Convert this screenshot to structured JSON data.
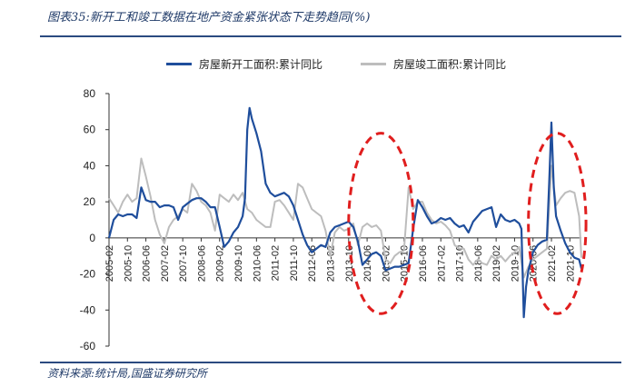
{
  "figure": {
    "title": "图表35:新开工和竣工数据在地产资金紧张状态下走势趋同(%)",
    "source": "资料来源:统计局,国盛证券研究所"
  },
  "chart_data": {
    "type": "line",
    "title": "",
    "xlabel": "",
    "ylabel": "",
    "ylim": [
      -60,
      80
    ],
    "yticks": [
      80,
      60,
      40,
      20,
      0,
      -20,
      -40,
      -60
    ],
    "xlim": [
      "2005-02",
      "2022-03"
    ],
    "xticks": [
      "2005-02",
      "2005-10",
      "2006-06",
      "2007-02",
      "2007-10",
      "2008-06",
      "2009-02",
      "2009-10",
      "2010-06",
      "2011-02",
      "2011-10",
      "2012-06",
      "2013-02",
      "2013-10",
      "2014-06",
      "2015-02",
      "2015-10",
      "2016-06",
      "2017-02",
      "2017-10",
      "2018-06",
      "2019-02",
      "2019-10",
      "2020-06",
      "2021-02",
      "2021-10"
    ],
    "legend_position": "top",
    "grid": false,
    "series": [
      {
        "name": "房屋新开工面积:累计同比",
        "color": "#1f4e9c",
        "points": [
          [
            "2005-02",
            0
          ],
          [
            "2005-04",
            10
          ],
          [
            "2005-06",
            13
          ],
          [
            "2005-08",
            12
          ],
          [
            "2005-10",
            13
          ],
          [
            "2005-12",
            13
          ],
          [
            "2006-02",
            11
          ],
          [
            "2006-04",
            28
          ],
          [
            "2006-06",
            21
          ],
          [
            "2006-08",
            20
          ],
          [
            "2006-10",
            20
          ],
          [
            "2006-12",
            17
          ],
          [
            "2007-02",
            18
          ],
          [
            "2007-04",
            18
          ],
          [
            "2007-06",
            17
          ],
          [
            "2007-08",
            10
          ],
          [
            "2007-10",
            17
          ],
          [
            "2007-12",
            19
          ],
          [
            "2008-02",
            21
          ],
          [
            "2008-04",
            22
          ],
          [
            "2008-06",
            22
          ],
          [
            "2008-08",
            20
          ],
          [
            "2008-10",
            17
          ],
          [
            "2008-12",
            17
          ],
          [
            "2009-02",
            6
          ],
          [
            "2009-04",
            -5
          ],
          [
            "2009-06",
            -2
          ],
          [
            "2009-08",
            3
          ],
          [
            "2009-10",
            6
          ],
          [
            "2009-12",
            12
          ],
          [
            "2010-01",
            22
          ],
          [
            "2010-02",
            60
          ],
          [
            "2010-03",
            72
          ],
          [
            "2010-04",
            66
          ],
          [
            "2010-06",
            58
          ],
          [
            "2010-08",
            48
          ],
          [
            "2010-10",
            30
          ],
          [
            "2010-12",
            25
          ],
          [
            "2011-02",
            23
          ],
          [
            "2011-04",
            24
          ],
          [
            "2011-06",
            25
          ],
          [
            "2011-08",
            23
          ],
          [
            "2011-10",
            18
          ],
          [
            "2011-12",
            10
          ],
          [
            "2012-02",
            2
          ],
          [
            "2012-04",
            -4
          ],
          [
            "2012-06",
            -8
          ],
          [
            "2012-08",
            -6
          ],
          [
            "2012-10",
            -4
          ],
          [
            "2012-12",
            -5
          ],
          [
            "2013-02",
            3
          ],
          [
            "2013-04",
            6
          ],
          [
            "2013-06",
            7
          ],
          [
            "2013-08",
            8
          ],
          [
            "2013-10",
            9
          ],
          [
            "2013-12",
            6
          ],
          [
            "2014-02",
            -2
          ],
          [
            "2014-04",
            -15
          ],
          [
            "2014-06",
            -12
          ],
          [
            "2014-08",
            -9
          ],
          [
            "2014-10",
            -8
          ],
          [
            "2014-12",
            -10
          ],
          [
            "2015-02",
            -18
          ],
          [
            "2015-04",
            -17
          ],
          [
            "2015-06",
            -16
          ],
          [
            "2015-08",
            -16
          ],
          [
            "2015-10",
            -15
          ],
          [
            "2015-12",
            -14
          ],
          [
            "2016-02",
            5
          ],
          [
            "2016-04",
            21
          ],
          [
            "2016-06",
            17
          ],
          [
            "2016-08",
            12
          ],
          [
            "2016-10",
            8
          ],
          [
            "2016-12",
            9
          ],
          [
            "2017-02",
            11
          ],
          [
            "2017-04",
            10
          ],
          [
            "2017-06",
            11
          ],
          [
            "2017-08",
            8
          ],
          [
            "2017-10",
            6
          ],
          [
            "2017-12",
            7
          ],
          [
            "2018-02",
            3
          ],
          [
            "2018-04",
            9
          ],
          [
            "2018-06",
            12
          ],
          [
            "2018-08",
            15
          ],
          [
            "2018-10",
            16
          ],
          [
            "2018-12",
            17
          ],
          [
            "2019-02",
            6
          ],
          [
            "2019-04",
            13
          ],
          [
            "2019-06",
            10
          ],
          [
            "2019-08",
            9
          ],
          [
            "2019-10",
            10
          ],
          [
            "2019-12",
            8
          ],
          [
            "2020-01",
            5
          ],
          [
            "2020-02",
            -44
          ],
          [
            "2020-03",
            -27
          ],
          [
            "2020-04",
            -18
          ],
          [
            "2020-06",
            -8
          ],
          [
            "2020-08",
            -4
          ],
          [
            "2020-10",
            -2
          ],
          [
            "2020-12",
            -1
          ],
          [
            "2021-01",
            30
          ],
          [
            "2021-02",
            64
          ],
          [
            "2021-03",
            28
          ],
          [
            "2021-04",
            12
          ],
          [
            "2021-06",
            4
          ],
          [
            "2021-08",
            -3
          ],
          [
            "2021-10",
            -8
          ],
          [
            "2021-12",
            -11
          ],
          [
            "2022-02",
            -12
          ],
          [
            "2022-03",
            -17
          ]
        ]
      },
      {
        "name": "房屋竣工面积:累计同比",
        "color": "#bdbdbd",
        "points": [
          [
            "2005-02",
            22
          ],
          [
            "2005-04",
            18
          ],
          [
            "2005-06",
            14
          ],
          [
            "2005-08",
            20
          ],
          [
            "2005-10",
            24
          ],
          [
            "2005-12",
            20
          ],
          [
            "2006-02",
            22
          ],
          [
            "2006-04",
            44
          ],
          [
            "2006-06",
            34
          ],
          [
            "2006-08",
            23
          ],
          [
            "2006-10",
            10
          ],
          [
            "2006-12",
            2
          ],
          [
            "2007-02",
            -3
          ],
          [
            "2007-04",
            6
          ],
          [
            "2007-06",
            10
          ],
          [
            "2007-08",
            12
          ],
          [
            "2007-10",
            16
          ],
          [
            "2007-12",
            14
          ],
          [
            "2008-02",
            30
          ],
          [
            "2008-04",
            26
          ],
          [
            "2008-06",
            20
          ],
          [
            "2008-08",
            18
          ],
          [
            "2008-10",
            14
          ],
          [
            "2008-12",
            4
          ],
          [
            "2009-02",
            24
          ],
          [
            "2009-04",
            22
          ],
          [
            "2009-06",
            20
          ],
          [
            "2009-08",
            24
          ],
          [
            "2009-10",
            21
          ],
          [
            "2009-12",
            25
          ],
          [
            "2010-02",
            16
          ],
          [
            "2010-04",
            14
          ],
          [
            "2010-06",
            10
          ],
          [
            "2010-08",
            8
          ],
          [
            "2010-10",
            6
          ],
          [
            "2010-12",
            6
          ],
          [
            "2011-02",
            20
          ],
          [
            "2011-04",
            21
          ],
          [
            "2011-06",
            18
          ],
          [
            "2011-08",
            14
          ],
          [
            "2011-10",
            10
          ],
          [
            "2011-12",
            30
          ],
          [
            "2012-02",
            28
          ],
          [
            "2012-04",
            22
          ],
          [
            "2012-06",
            16
          ],
          [
            "2012-08",
            14
          ],
          [
            "2012-10",
            12
          ],
          [
            "2012-12",
            4
          ],
          [
            "2013-02",
            -10
          ],
          [
            "2013-04",
            3
          ],
          [
            "2013-06",
            6
          ],
          [
            "2013-08",
            4
          ],
          [
            "2013-10",
            5
          ],
          [
            "2013-12",
            8
          ],
          [
            "2014-02",
            -4
          ],
          [
            "2014-04",
            6
          ],
          [
            "2014-06",
            8
          ],
          [
            "2014-08",
            6
          ],
          [
            "2014-10",
            7
          ],
          [
            "2014-12",
            4
          ],
          [
            "2015-02",
            -12
          ],
          [
            "2015-04",
            -14
          ],
          [
            "2015-06",
            -10
          ],
          [
            "2015-08",
            -8
          ],
          [
            "2015-10",
            -7
          ],
          [
            "2015-12",
            28
          ],
          [
            "2016-02",
            16
          ],
          [
            "2016-04",
            20
          ],
          [
            "2016-06",
            20
          ],
          [
            "2016-08",
            14
          ],
          [
            "2016-10",
            10
          ],
          [
            "2016-12",
            8
          ],
          [
            "2017-02",
            9
          ],
          [
            "2017-04",
            7
          ],
          [
            "2017-06",
            4
          ],
          [
            "2017-08",
            -4
          ],
          [
            "2017-10",
            -6
          ],
          [
            "2017-12",
            -6
          ],
          [
            "2018-02",
            -12
          ],
          [
            "2018-04",
            -15
          ],
          [
            "2018-06",
            -12
          ],
          [
            "2018-08",
            -14
          ],
          [
            "2018-10",
            -15
          ],
          [
            "2018-12",
            -10
          ],
          [
            "2019-02",
            -12
          ],
          [
            "2019-04",
            -10
          ],
          [
            "2019-06",
            -13
          ],
          [
            "2019-08",
            -10
          ],
          [
            "2019-10",
            -8
          ],
          [
            "2019-12",
            -5
          ],
          [
            "2020-02",
            -22
          ],
          [
            "2020-04",
            -16
          ],
          [
            "2020-06",
            -12
          ],
          [
            "2020-08",
            -10
          ],
          [
            "2020-10",
            -8
          ],
          [
            "2020-12",
            -6
          ],
          [
            "2021-02",
            40
          ],
          [
            "2021-04",
            18
          ],
          [
            "2021-06",
            22
          ],
          [
            "2021-08",
            25
          ],
          [
            "2021-10",
            26
          ],
          [
            "2021-12",
            25
          ],
          [
            "2022-02",
            12
          ],
          [
            "2022-03",
            -11
          ]
        ]
      }
    ],
    "annotations": [
      {
        "type": "dashed-ellipse",
        "color": "#e01e1e",
        "x_range": [
          "2013-10",
          "2016-02"
        ],
        "y_range": [
          -42,
          58
        ]
      },
      {
        "type": "dashed-ellipse",
        "color": "#e01e1e",
        "x_range": [
          "2020-04",
          "2022-05"
        ],
        "y_range": [
          -42,
          58
        ]
      }
    ]
  }
}
